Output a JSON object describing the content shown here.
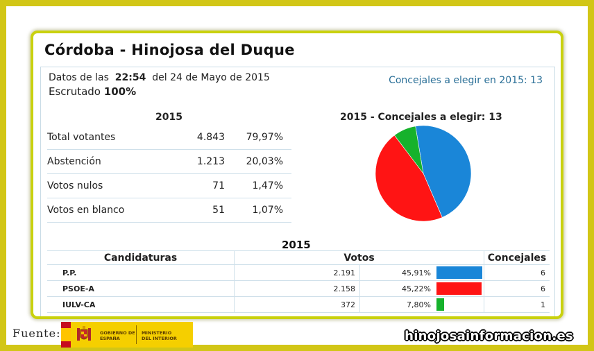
{
  "header": {
    "title": "Córdoba - Hinojosa del Duque"
  },
  "info": {
    "date_prefix": "Datos de las",
    "time": "22:54",
    "date_suffix": "del 24 de Mayo de 2015",
    "scrutiny_label": "Escrutado",
    "scrutiny_value": "100%",
    "concejales_text": "Concejales a elegir en 2015: 13"
  },
  "summary": {
    "year": "2015",
    "rows": [
      {
        "label": "Total votantes",
        "count": "4.843",
        "percent": "79,97%"
      },
      {
        "label": "Abstención",
        "count": "1.213",
        "percent": "20,03%"
      },
      {
        "label": "Votos nulos",
        "count": "71",
        "percent": "1,47%"
      },
      {
        "label": "Votos en blanco",
        "count": "51",
        "percent": "1,07%"
      }
    ]
  },
  "pie": {
    "title": "2015 - Concejales a elegir: 13"
  },
  "results": {
    "year": "2015",
    "headers": {
      "party": "Candidaturas",
      "votes": "Votos",
      "seats": "Concejales"
    },
    "rows": [
      {
        "party": "P.P.",
        "votes": "2.191",
        "percent": "45,91%",
        "seats": "6"
      },
      {
        "party": "PSOE-A",
        "votes": "2.158",
        "percent": "45,22%",
        "seats": "6"
      },
      {
        "party": "IULV-CA",
        "votes": "372",
        "percent": "7,80%",
        "seats": "1"
      }
    ]
  },
  "chart_data": {
    "type": "pie",
    "title": "2015 - Concejales a elegir: 13",
    "series": [
      {
        "name": "P.P.",
        "value": 6,
        "color": "#1a86d8"
      },
      {
        "name": "PSOE-A",
        "value": 6,
        "color": "#ff1414"
      },
      {
        "name": "IULV-CA",
        "value": 1,
        "color": "#16b22c"
      }
    ],
    "bars": [
      {
        "name": "P.P.",
        "fraction": 0.4591,
        "color": "#1a86d8"
      },
      {
        "name": "PSOE-A",
        "fraction": 0.4522,
        "color": "#ff1414"
      },
      {
        "name": "IULV-CA",
        "fraction": 0.078,
        "color": "#16b22c"
      }
    ]
  },
  "footer": {
    "source_label": "Fuente:",
    "logo_text_1": "GOBIERNO DE ESPAÑA",
    "logo_text_2": "MINISTERIO DEL INTERIOR",
    "website": "hinojosainformacion.es"
  },
  "colors": {
    "frame": "#d2c616",
    "card_border": "#c9d10e",
    "link": "#2a6f97",
    "logo_bg": "#f5cf00"
  }
}
